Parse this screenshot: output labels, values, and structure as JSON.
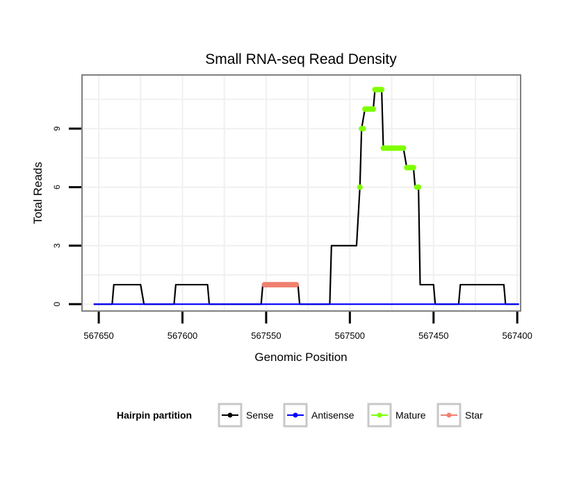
{
  "chart_data": {
    "type": "line",
    "title": "Small RNA-seq Read Density",
    "xlabel": "Genomic Position",
    "ylabel": "Total Reads",
    "x_reversed": true,
    "xlim": [
      567660,
      567398
    ],
    "ylim": [
      -0.35,
      11.75
    ],
    "x_ticks": [
      567650,
      567600,
      567550,
      567500,
      567450,
      567400
    ],
    "y_ticks": [
      0,
      3,
      6,
      9
    ],
    "grid": true,
    "legend": {
      "title": "Hairpin partition",
      "position": "bottom",
      "entries": [
        "Sense",
        "Antisense",
        "Mature",
        "Star"
      ]
    },
    "series": [
      {
        "name": "Sense",
        "color": "#000000",
        "points": [
          [
            567653,
            0
          ],
          [
            567642,
            0
          ],
          [
            567641,
            1
          ],
          [
            567625,
            1
          ],
          [
            567623,
            0
          ],
          [
            567605,
            0
          ],
          [
            567604,
            1
          ],
          [
            567585,
            1
          ],
          [
            567584,
            0
          ],
          [
            567553,
            0
          ],
          [
            567552,
            1
          ],
          [
            567531,
            1
          ],
          [
            567530,
            0
          ],
          [
            567512,
            0
          ],
          [
            567511,
            3
          ],
          [
            567496,
            3
          ],
          [
            567494,
            6
          ],
          [
            567493,
            9
          ],
          [
            567491,
            10
          ],
          [
            567486,
            10
          ],
          [
            567485,
            11
          ],
          [
            567481,
            11
          ],
          [
            567480,
            8
          ],
          [
            567468,
            8
          ],
          [
            567466,
            7
          ],
          [
            567462,
            7
          ],
          [
            567461,
            6
          ],
          [
            567459,
            6
          ],
          [
            567458,
            1
          ],
          [
            567450,
            1
          ],
          [
            567449,
            0
          ],
          [
            567435,
            0
          ],
          [
            567434,
            1
          ],
          [
            567408,
            1
          ],
          [
            567407,
            0
          ],
          [
            567399,
            0
          ]
        ]
      },
      {
        "name": "Antisense",
        "color": "#0000ff",
        "points": [
          [
            567653,
            0
          ],
          [
            567399,
            0
          ]
        ]
      },
      {
        "name": "Mature",
        "color": "#7fff00",
        "points": [
          [
            567494,
            6
          ],
          [
            567493,
            9
          ],
          [
            567492,
            9
          ],
          [
            567491,
            10
          ],
          [
            567490,
            10
          ],
          [
            567489,
            10
          ],
          [
            567488,
            10
          ],
          [
            567487,
            10
          ],
          [
            567486,
            10
          ],
          [
            567485,
            11
          ],
          [
            567484,
            11
          ],
          [
            567483,
            11
          ],
          [
            567482,
            11
          ],
          [
            567481,
            11
          ],
          [
            567480,
            8
          ],
          [
            567479,
            8
          ],
          [
            567478,
            8
          ],
          [
            567477,
            8
          ],
          [
            567476,
            8
          ],
          [
            567475,
            8
          ],
          [
            567474,
            8
          ],
          [
            567473,
            8
          ],
          [
            567472,
            8
          ],
          [
            567471,
            8
          ],
          [
            567470,
            8
          ],
          [
            567469,
            8
          ],
          [
            567468,
            8
          ],
          [
            567466,
            7
          ],
          [
            567465,
            7
          ],
          [
            567464,
            7
          ],
          [
            567463,
            7
          ],
          [
            567462,
            7
          ],
          [
            567460,
            6
          ],
          [
            567459,
            6
          ]
        ]
      },
      {
        "name": "Star",
        "color": "#f08070",
        "points": [
          [
            567551,
            1
          ],
          [
            567550,
            1
          ],
          [
            567549,
            1
          ],
          [
            567548,
            1
          ],
          [
            567547,
            1
          ],
          [
            567546,
            1
          ],
          [
            567545,
            1
          ],
          [
            567544,
            1
          ],
          [
            567543,
            1
          ],
          [
            567542,
            1
          ],
          [
            567541,
            1
          ],
          [
            567540,
            1
          ],
          [
            567539,
            1
          ],
          [
            567538,
            1
          ],
          [
            567537,
            1
          ],
          [
            567536,
            1
          ],
          [
            567535,
            1
          ],
          [
            567534,
            1
          ],
          [
            567533,
            1
          ],
          [
            567532,
            1
          ]
        ]
      }
    ]
  }
}
